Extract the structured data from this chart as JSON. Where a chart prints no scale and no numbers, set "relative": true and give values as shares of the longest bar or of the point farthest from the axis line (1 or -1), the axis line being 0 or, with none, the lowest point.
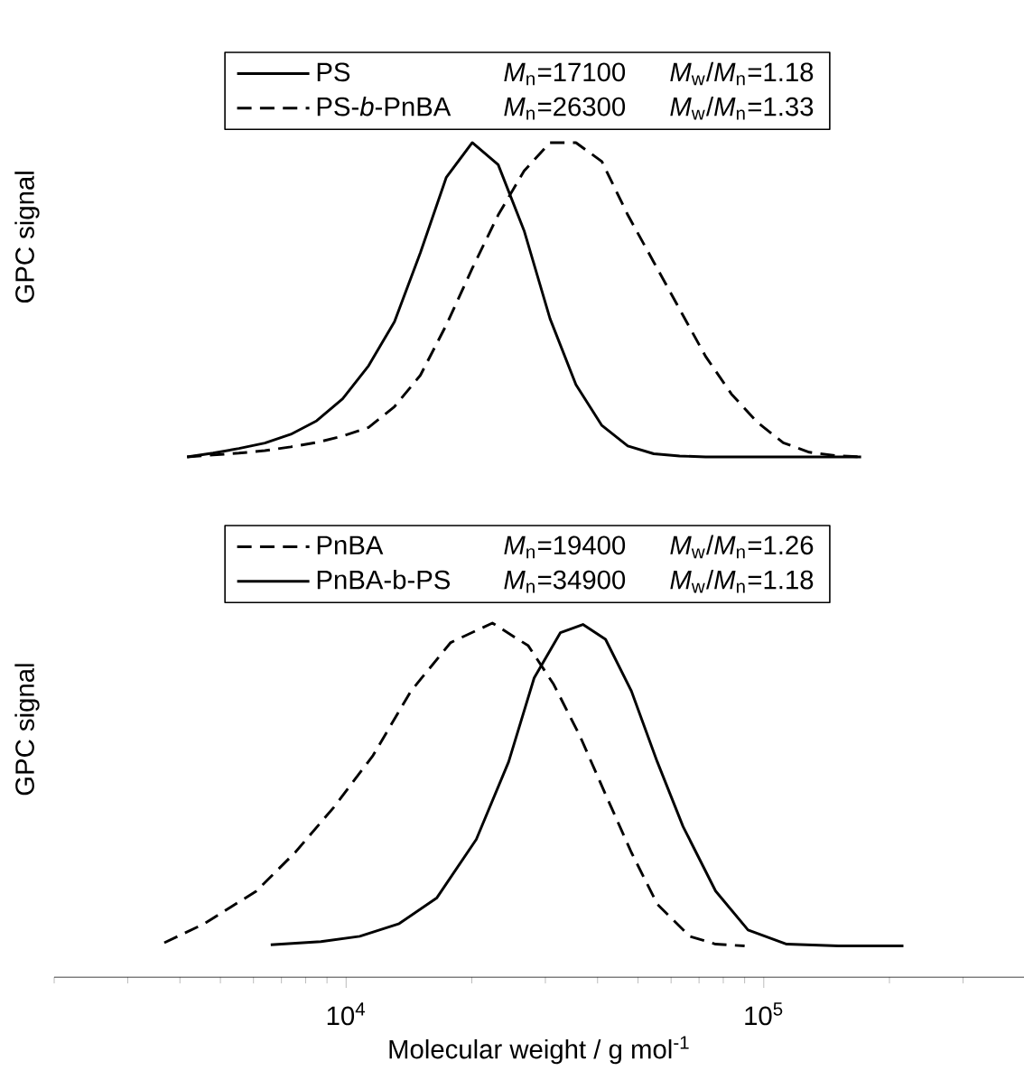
{
  "chart_data": [
    {
      "type": "line",
      "relative": true,
      "tick_labels": false,
      "ylabel": "GPC signal",
      "legend": "top",
      "categories": [
        null,
        null,
        null,
        null,
        null,
        null,
        null,
        null,
        null,
        null,
        null,
        null,
        null,
        null,
        null,
        null,
        null,
        null,
        null,
        null,
        null,
        null,
        null,
        null,
        null,
        null,
        null
      ],
      "annotations": [
        "*M*$_{n}$=17100",
        "*M*$_{w}$/*M*$_{n}$=1.18",
        "*M*$_{n}$=26300",
        "*M*$_{w}$/*M*$_{n}$=1.33"
      ],
      "series": [
        {
          "name": "PS",
          "line_style": "solid",
          "color": "#000000",
          "values": [
            0,
            0.012,
            0.027,
            0.044,
            0.072,
            0.115,
            0.185,
            0.29,
            0.43,
            0.65,
            0.89,
            1,
            0.93,
            0.72,
            0.44,
            0.23,
            0.1,
            0.035,
            0.01,
            0.003,
            0,
            0,
            0,
            0,
            0,
            0,
            0
          ]
        },
        {
          "name": "PS-*b*-PnBA",
          "line_style": "dashed",
          "color": "#000000",
          "values": [
            0,
            0.006,
            0.012,
            0.02,
            0.032,
            0.046,
            0.066,
            0.094,
            0.16,
            0.26,
            0.42,
            0.6,
            0.77,
            0.91,
            1,
            1,
            0.94,
            0.77,
            0.62,
            0.47,
            0.32,
            0.2,
            0.11,
            0.045,
            0.015,
            0.004,
            0
          ]
        }
      ]
    },
    {
      "type": "line",
      "relative": true,
      "log": "x",
      "xlim": [
        2000,
        420000
      ],
      "tick_labels": "x",
      "ylabel": "GPC signal",
      "xlabel": "Molecular weight / g mol$^{-1}$",
      "legend": "top",
      "xticks": [
        {
          "value": 2000,
          "label": null
        },
        {
          "value": 3000,
          "label": null
        },
        {
          "value": 4000,
          "label": null
        },
        {
          "value": 5000,
          "label": null
        },
        {
          "value": 6000,
          "label": null
        },
        {
          "value": 7000,
          "label": null
        },
        {
          "value": 8000,
          "label": null
        },
        {
          "value": 9000,
          "label": null
        },
        {
          "value": 10000,
          "label": "10$^{4}$"
        },
        {
          "value": 20000,
          "label": null
        },
        {
          "value": 30000,
          "label": null
        },
        {
          "value": 40000,
          "label": null
        },
        {
          "value": 50000,
          "label": null
        },
        {
          "value": 60000,
          "label": null
        },
        {
          "value": 70000,
          "label": null
        },
        {
          "value": 80000,
          "label": null
        },
        {
          "value": 90000,
          "label": null
        },
        {
          "value": 100000,
          "label": "10$^{5}$"
        },
        {
          "value": 200000,
          "label": null
        },
        {
          "value": 300000,
          "label": null
        }
      ],
      "annotations": [
        "*M*$_{n}$=19400",
        "*M*$_{w}$/*M*$_{n}$=1.26",
        "*M*$_{n}$=34900",
        "*M*$_{w}$/*M*$_{n}$=1.18"
      ],
      "series": [
        {
          "name": "PnBA",
          "line_style": "dashed",
          "color": "#000000",
          "x": [
            3670,
            4580,
            6100,
            7550,
            9350,
            11600,
            14300,
            17800,
            22400,
            27300,
            31400,
            36300,
            41800,
            48200,
            55600,
            66500,
            76700,
            90000
          ],
          "values": [
            0.097,
            0.151,
            0.243,
            0.352,
            0.48,
            0.626,
            0.808,
            0.945,
            1,
            0.936,
            0.827,
            0.681,
            0.516,
            0.352,
            0.206,
            0.115,
            0.093,
            0.088
          ]
        },
        {
          "name": "PnBA-b-PS",
          "line_style": "solid",
          "color": "#000000",
          "x": [
            6600,
            8700,
            10780,
            13400,
            16500,
            20500,
            24500,
            28200,
            32600,
            36900,
            41800,
            48200,
            55600,
            64100,
            76700,
            91700,
            113500,
            151000,
            216000
          ],
          "values": [
            0.091,
            0.1,
            0.115,
            0.151,
            0.224,
            0.389,
            0.608,
            0.845,
            0.973,
            0.996,
            0.954,
            0.808,
            0.608,
            0.425,
            0.243,
            0.133,
            0.093,
            0.088,
            0.088
          ]
        }
      ]
    }
  ]
}
